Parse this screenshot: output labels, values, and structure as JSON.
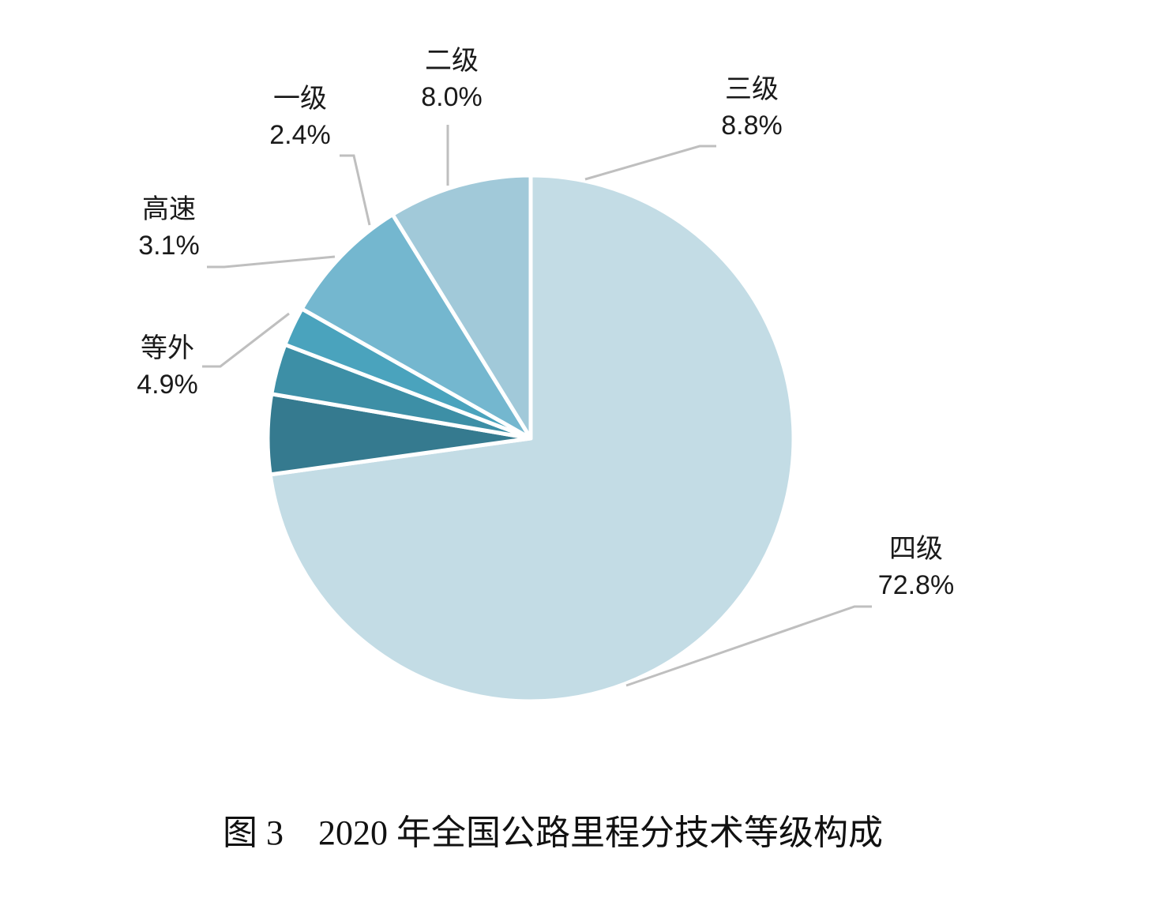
{
  "chart_data": {
    "type": "pie",
    "title": "",
    "caption": "图 3　2020 年全国公路里程分技术等级构成",
    "start_angle_deg": -90,
    "direction": "clockwise",
    "slices": [
      {
        "name": "四级",
        "value": 72.8,
        "label": "72.8%",
        "color": "#c3dce5"
      },
      {
        "name": "等外",
        "value": 4.9,
        "label": "4.9%",
        "color": "#357a8f"
      },
      {
        "name": "高速",
        "value": 3.1,
        "label": "3.1%",
        "color": "#3d8fa6"
      },
      {
        "name": "一级",
        "value": 2.4,
        "label": "2.4%",
        "color": "#4aa3bd"
      },
      {
        "name": "二级",
        "value": 8.0,
        "label": "8.0%",
        "color": "#74b7cf"
      },
      {
        "name": "三级",
        "value": 8.8,
        "label": "8.8%",
        "color": "#a1c9d9"
      }
    ]
  }
}
